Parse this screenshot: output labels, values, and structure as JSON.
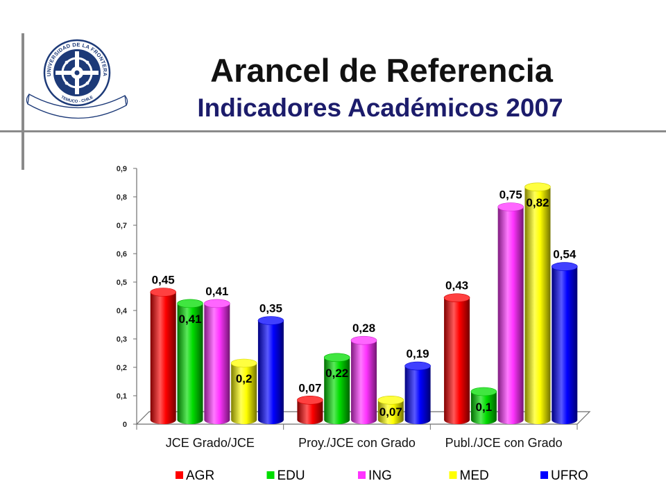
{
  "slide": {
    "title": "Arancel de Referencia",
    "subtitle": "Indicadores Académicos 2007"
  },
  "logo": {
    "icon": "university-seal",
    "ring_top": "UNIVERSIDAD DE LA FRONTERA",
    "ring_bottom": "TEMUCO - CHILE",
    "color": "#1d3a78"
  },
  "colors": {
    "title": "#111111",
    "subtitle": "#1c1c6b",
    "rules": "#8a8a8a"
  },
  "chart_data": {
    "type": "bar",
    "style": "3d-cylinder",
    "categories": [
      "JCE Grado/JCE",
      "Proy./JCE con Grado",
      "Publ./JCE con Grado"
    ],
    "series": [
      {
        "name": "AGR",
        "color": "#ff0000",
        "values": [
          0.45,
          0.07,
          0.43
        ],
        "labels": [
          "0,45",
          "0,07",
          "0,43"
        ]
      },
      {
        "name": "EDU",
        "color": "#00dd00",
        "values": [
          0.41,
          0.22,
          0.1
        ],
        "labels": [
          "0,41",
          "0,22",
          "0,1"
        ]
      },
      {
        "name": "ING",
        "color": "#ff33ff",
        "values": [
          0.41,
          0.28,
          0.75
        ],
        "labels": [
          "0,41",
          "0,28",
          "0,75"
        ]
      },
      {
        "name": "MED",
        "color": "#ffff00",
        "values": [
          0.2,
          0.07,
          0.82
        ],
        "labels": [
          "0,2",
          "0,07",
          "0,82"
        ]
      },
      {
        "name": "UFRO",
        "color": "#0000ff",
        "values": [
          0.35,
          0.19,
          0.54
        ],
        "labels": [
          "0,35",
          "0,19",
          "0,54"
        ]
      }
    ],
    "ylim": [
      0,
      0.9
    ],
    "yticks": [
      0,
      0.1,
      0.2,
      0.3,
      0.4,
      0.5,
      0.6,
      0.7,
      0.8,
      0.9
    ],
    "ytick_labels": [
      "0",
      "0,1",
      "0,2",
      "0,3",
      "0,4",
      "0,5",
      "0,6",
      "0,7",
      "0,8",
      "0,9"
    ],
    "grid": false,
    "legend": "bottom"
  }
}
